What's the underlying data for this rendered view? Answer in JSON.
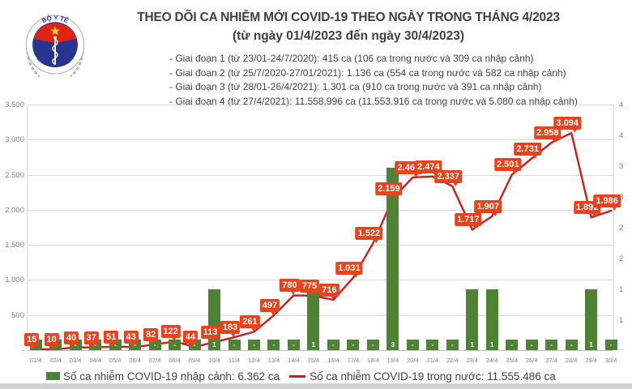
{
  "header": {
    "title": "THEO DÕI CA NHIỄM MỚI COVID-19 THEO NGÀY TRONG THÁNG 4/2023",
    "subtitle": "(từ ngày 01/4/2023 đến ngày 30/4/2023)",
    "phases": [
      "- Giai đoạn 1 (từ 23/01-24/7/2020): 415 ca (106 ca trong nước và 309 ca nhập cảnh)",
      "- Giai đoạn 2 (từ 25/7/2020-27/01/2021): 1.136 ca (554 ca trong nước và 582 ca nhập cảnh)",
      "- Giai đoạn 3 (từ 28/01-26/4/2021): 1.301 ca (910 ca trong nước và 391 ca nhập cảnh)",
      "- Giai đoạn 4 (từ 27/4/2021): 11.558.996 ca (11.553.916 ca trong nước và 5.080 ca nhập cảnh)"
    ],
    "logo": {
      "top_text": "BỘ Y TẾ",
      "bottom_text": "MINISTRY OF HEALTH"
    }
  },
  "chart_data": {
    "type": "bar+line",
    "categories": [
      "01/4",
      "02/4",
      "03/4",
      "04/4",
      "05/4",
      "06/4",
      "07/4",
      "08/4",
      "09/4",
      "10/4",
      "11/4",
      "12/4",
      "13/4",
      "14/4",
      "15/4",
      "16/4",
      "17/4",
      "18/4",
      "19/4",
      "20/4",
      "21/4",
      "22/4",
      "23/4",
      "24/4",
      "25/4",
      "26/4",
      "27/4",
      "28/4",
      "29/4",
      "30/4"
    ],
    "series": [
      {
        "name": "Số ca nhiễm COVID-19 nhập cảnh",
        "type": "bar",
        "axis": "right",
        "color": "#4e8234",
        "values": [
          0,
          0,
          0,
          0,
          0,
          0,
          0,
          0,
          0,
          1,
          0,
          0,
          0,
          0,
          1,
          0,
          0,
          0,
          3,
          0,
          0,
          0,
          1,
          1,
          0,
          0,
          0,
          0,
          1,
          0
        ],
        "labels": [
          "-",
          "-",
          "-",
          "-",
          "-",
          "-",
          "-",
          "-",
          "-",
          "1",
          "-",
          "-",
          "-",
          "-",
          "1",
          "-",
          "-",
          "-",
          "3",
          "-",
          "-",
          "-",
          "1",
          "1",
          "-",
          "-",
          "-",
          "-",
          "1",
          "-"
        ]
      },
      {
        "name": "Số ca nhiễm COVID-19 trong nước",
        "type": "line",
        "axis": "left",
        "color": "#cb1e1a",
        "values": [
          15,
          10,
          40,
          37,
          51,
          43,
          82,
          122,
          44,
          113,
          183,
          261,
          497,
          780,
          775,
          716,
          1031,
          1522,
          2159,
          2461,
          2474,
          2337,
          1717,
          1907,
          2501,
          2731,
          2958,
          3094,
          1892,
          1986
        ],
        "labels": [
          "15",
          "10",
          "40",
          "37",
          "51",
          "43",
          "82",
          "122",
          "44",
          "113",
          "183",
          "261",
          "497",
          "780",
          "775",
          "716",
          "1.031",
          "1.522",
          "2.159",
          "2.461",
          "2.474",
          "2.337",
          "1.717",
          "1.907",
          "2.501",
          "2.731",
          "2.958",
          "3.094",
          "1.892",
          "1.986"
        ]
      }
    ],
    "left_axis": {
      "min": 0,
      "max": 3500,
      "ticks": [
        "3.500",
        "3.000",
        "2.500",
        "2.000",
        "1.500",
        "1.000",
        "500",
        "-"
      ]
    },
    "right_axis": {
      "visible_digits": [
        "4",
        "4",
        "3",
        "3",
        "2",
        "2",
        "1",
        "1"
      ],
      "baseline_label": "-"
    },
    "grid": true,
    "legend_position": "bottom",
    "legend": [
      {
        "swatch": "square",
        "color": "#4e8234",
        "label": "Số ca nhiễm COVID-19 nhập cảnh: 6.362 ca"
      },
      {
        "swatch": "line",
        "color": "#cb1e1a",
        "label": "Số ca nhiễm COVID-19 trong nước: 11.555.486 ca"
      }
    ]
  }
}
